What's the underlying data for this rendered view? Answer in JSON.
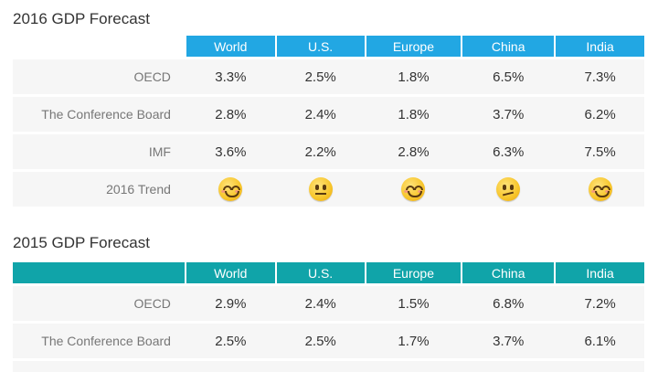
{
  "colors": {
    "header_2016": "#22a7e3",
    "header_2015": "#10a4a9",
    "row_bg": "#f6f6f6",
    "emoji_yellow": "#f7c52a"
  },
  "columns": [
    "World",
    "U.S.",
    "Europe",
    "China",
    "India"
  ],
  "forecast_2016": {
    "title": "2016 GDP Forecast",
    "rows": [
      {
        "label": "OECD",
        "values": [
          "3.3%",
          "2.5%",
          "1.8%",
          "6.5%",
          "7.3%"
        ]
      },
      {
        "label": "The Conference Board",
        "values": [
          "2.8%",
          "2.4%",
          "1.8%",
          "3.7%",
          "6.2%"
        ]
      },
      {
        "label": "IMF",
        "values": [
          "3.6%",
          "2.2%",
          "2.8%",
          "6.3%",
          "7.5%"
        ]
      }
    ],
    "trend": {
      "label": "2016 Trend",
      "icons": [
        "smiling-face-icon",
        "neutral-face-icon",
        "smiling-face-icon",
        "confused-face-icon",
        "smiling-face-icon"
      ]
    }
  },
  "forecast_2015": {
    "title": "2015 GDP Forecast",
    "rows": [
      {
        "label": "OECD",
        "values": [
          "2.9%",
          "2.4%",
          "1.5%",
          "6.8%",
          "7.2%"
        ]
      },
      {
        "label": "The Conference Board",
        "values": [
          "2.5%",
          "2.5%",
          "1.7%",
          "3.7%",
          "6.1%"
        ]
      }
    ]
  }
}
